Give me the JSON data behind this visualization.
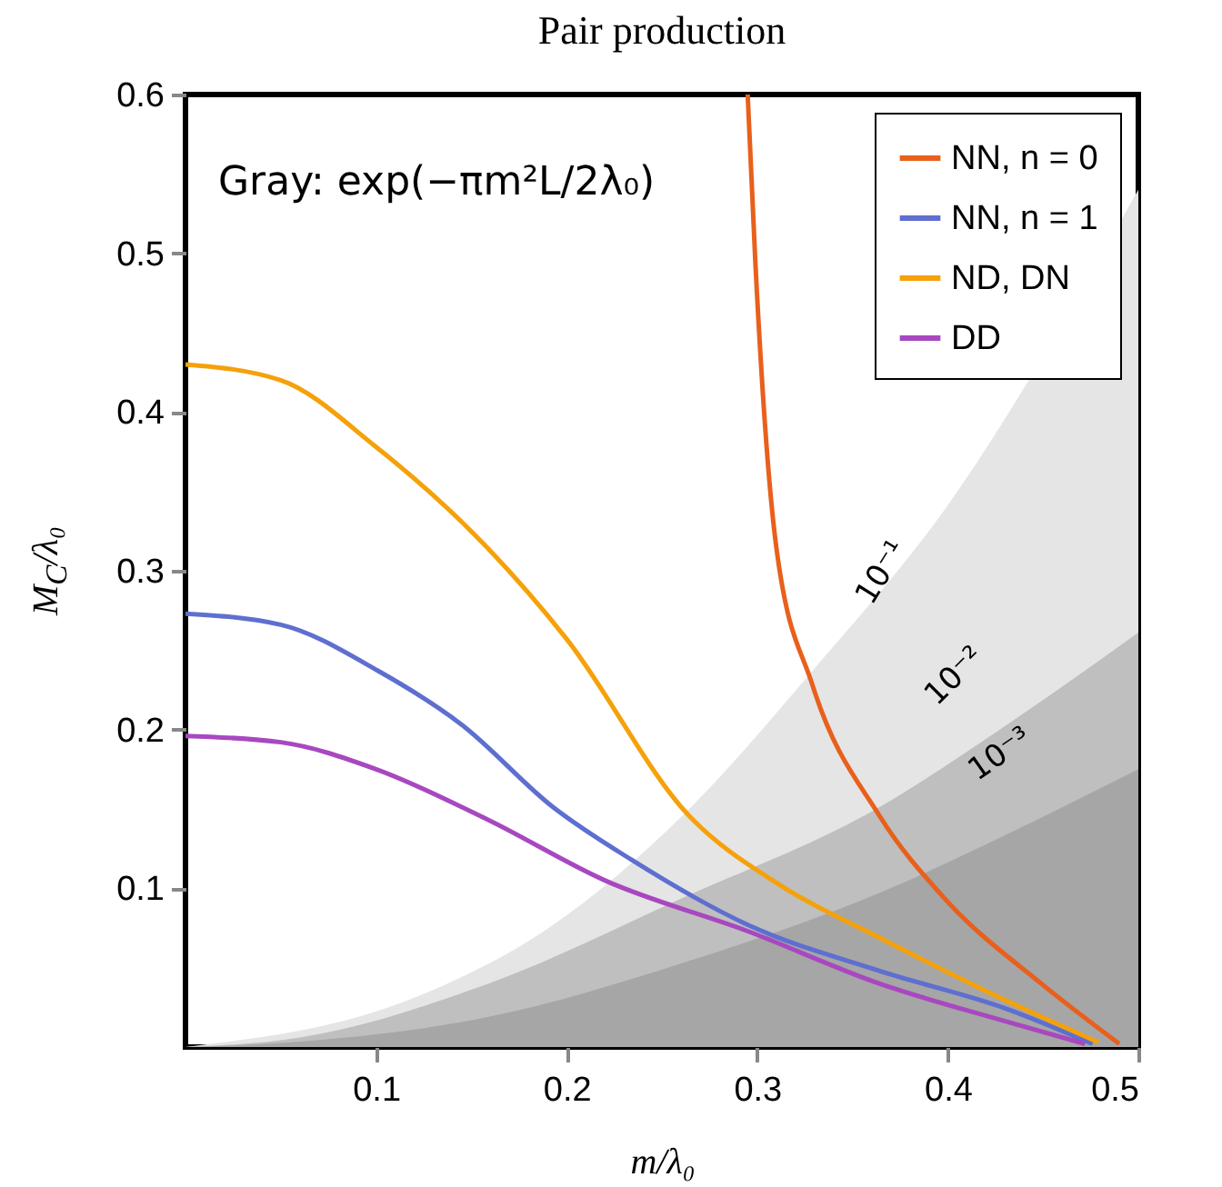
{
  "chart_data": {
    "type": "line",
    "title": "Pair production",
    "xlabel": "m/λ₀",
    "ylabel": "M$_{C}$/λ₀",
    "xlim": [
      0,
      0.5
    ],
    "ylim": [
      0,
      0.6
    ],
    "xticks": [
      0.1,
      0.2,
      0.3,
      0.4,
      0.5
    ],
    "yticks": [
      0.1,
      0.2,
      0.3,
      0.4,
      0.5,
      0.6
    ],
    "grid": false,
    "legend": "top right",
    "annotations": [
      "Gray: exp(−πm²L/2λ₀)",
      "10⁻¹",
      "10⁻²",
      "10⁻³"
    ],
    "series": [
      {
        "type": "area",
        "color": "#e5e5e5",
        "x": [
          0,
          0.12,
          0.193,
          0.261,
          0.329,
          0.398,
          0.5
        ],
        "values": [
          0,
          0.031,
          0.077,
          0.146,
          0.237,
          0.338,
          0.54
        ]
      },
      {
        "type": "area",
        "color": "#bfbfbf",
        "x": [
          0,
          0.06,
          0.159,
          0.261,
          0.364,
          0.431,
          0.5
        ],
        "values": [
          0,
          0.006,
          0.04,
          0.094,
          0.151,
          0.203,
          0.261
        ]
      },
      {
        "type": "area",
        "color": "#a6a6a6",
        "x": [
          0,
          0.056,
          0.159,
          0.261,
          0.364,
          0.431,
          0.5
        ],
        "values": [
          0,
          0.003,
          0.019,
          0.053,
          0.097,
          0.134,
          0.175
        ]
      },
      {
        "name": "NN, n = 0",
        "color": "#e8601c",
        "x": [
          0.295,
          0.299,
          0.31,
          0.329,
          0.364,
          0.398,
          0.449,
          0.49
        ],
        "values": [
          0.6,
          0.495,
          0.315,
          0.228,
          0.146,
          0.094,
          0.04,
          0.002
        ]
      },
      {
        "name": "NN, n = 1",
        "color": "#5e6fd0",
        "x": [
          0,
          0.05,
          0.101,
          0.145,
          0.193,
          0.234,
          0.295,
          0.364,
          0.431,
          0.476
        ],
        "values": [
          0.273,
          0.266,
          0.237,
          0.203,
          0.151,
          0.118,
          0.077,
          0.048,
          0.024,
          0.002
        ]
      },
      {
        "name": "ND, DN",
        "color": "#f5a10a",
        "x": [
          0,
          0.05,
          0.1,
          0.158,
          0.2,
          0.264,
          0.312,
          0.364,
          0.431,
          0.479
        ],
        "values": [
          0.43,
          0.42,
          0.378,
          0.315,
          0.257,
          0.146,
          0.102,
          0.069,
          0.029,
          0.003
        ]
      },
      {
        "name": "DD",
        "color": "#a848c0",
        "x": [
          0,
          0.05,
          0.1,
          0.159,
          0.22,
          0.295,
          0.364,
          0.431,
          0.472
        ],
        "values": [
          0.196,
          0.192,
          0.175,
          0.143,
          0.105,
          0.073,
          0.04,
          0.016,
          0.002
        ]
      }
    ]
  }
}
